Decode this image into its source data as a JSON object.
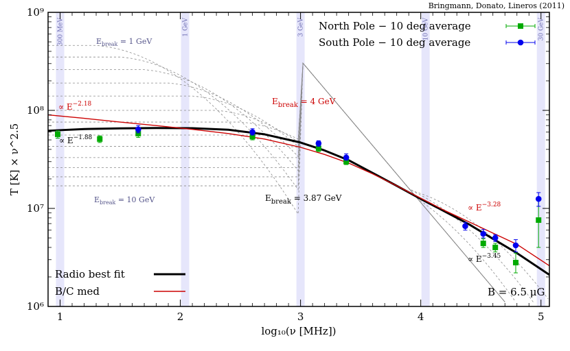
{
  "chart_data": {
    "type": "scatter",
    "credit": "Bringmann, Donato, Lineros (2011)",
    "xlabel": "log₁₀(ν [MHz])",
    "ylabel": "T [K] × ν^2.5",
    "xlim": [
      0.9,
      5.07
    ],
    "ylim": [
      1000000,
      1000000000
    ],
    "yscale": "log",
    "x_ticks": [
      1,
      2,
      3,
      4,
      5
    ],
    "x_tick_labels": [
      "1",
      "2",
      "3",
      "4",
      "5"
    ],
    "y_ticks": [
      1000000,
      10000000,
      100000000,
      1000000000
    ],
    "y_tick_labels": [
      "10⁶",
      "10⁷",
      "10⁸",
      "10⁹"
    ],
    "bands": [
      {
        "x": 1.0,
        "label": "300 MeV"
      },
      {
        "x": 2.04,
        "label": "1 GeV"
      },
      {
        "x": 3.0,
        "label": "3 GeV"
      },
      {
        "x": 4.04,
        "label": "10 GeV"
      },
      {
        "x": 5.0,
        "label": "30 GeV"
      }
    ],
    "series": [
      {
        "name": "North Pole − 10 deg average",
        "color": "#00aa00",
        "marker": "square",
        "points": [
          {
            "x": 0.98,
            "y": 57000000,
            "ylo": 52000000,
            "yhi": 62000000
          },
          {
            "x": 1.33,
            "y": 51000000,
            "ylo": 47000000,
            "yhi": 55000000
          },
          {
            "x": 1.65,
            "y": 58000000,
            "ylo": 53000000,
            "yhi": 63000000
          },
          {
            "x": 2.6,
            "y": 54000000,
            "ylo": 50000000,
            "yhi": 58000000
          },
          {
            "x": 3.15,
            "y": 41000000,
            "ylo": 38000000,
            "yhi": 44000000
          },
          {
            "x": 3.38,
            "y": 30000000,
            "ylo": 28000000,
            "yhi": 32000000
          },
          {
            "x": 4.52,
            "y": 4400000,
            "ylo": 4000000,
            "yhi": 4900000
          },
          {
            "x": 4.62,
            "y": 4000000,
            "ylo": 3600000,
            "yhi": 4400000
          },
          {
            "x": 4.79,
            "y": 2800000,
            "ylo": 2200000,
            "yhi": 3500000
          },
          {
            "x": 4.98,
            "y": 7600000,
            "ylo": 4000000,
            "yhi": 13000000
          }
        ]
      },
      {
        "name": "South Pole − 10 deg average",
        "color": "#0000ee",
        "marker": "circle",
        "points": [
          {
            "x": 1.65,
            "y": 64000000,
            "ylo": 59000000,
            "yhi": 70000000
          },
          {
            "x": 2.6,
            "y": 60000000,
            "ylo": 56000000,
            "yhi": 65000000
          },
          {
            "x": 3.15,
            "y": 46000000,
            "ylo": 43000000,
            "yhi": 49000000
          },
          {
            "x": 3.38,
            "y": 33000000,
            "ylo": 31000000,
            "yhi": 36000000
          },
          {
            "x": 4.37,
            "y": 6600000,
            "ylo": 6000000,
            "yhi": 7200000
          },
          {
            "x": 4.52,
            "y": 5500000,
            "ylo": 5000000,
            "yhi": 6100000
          },
          {
            "x": 4.62,
            "y": 5000000,
            "ylo": 4600000,
            "yhi": 5400000
          },
          {
            "x": 4.79,
            "y": 4200000,
            "ylo": 3600000,
            "yhi": 4800000
          },
          {
            "x": 4.98,
            "y": 12500000,
            "ylo": 10500000,
            "yhi": 14500000
          }
        ]
      }
    ],
    "curves": [
      {
        "name": "Radio best fit",
        "color": "#000000",
        "style": "solid-thick",
        "points": [
          [
            0.9,
            62000000
          ],
          [
            1.2,
            64500000
          ],
          [
            1.5,
            65500000
          ],
          [
            1.8,
            66000000
          ],
          [
            2.1,
            65800000
          ],
          [
            2.4,
            63500000
          ],
          [
            2.7,
            57000000
          ],
          [
            3.0,
            47000000
          ],
          [
            3.2,
            39000000
          ],
          [
            3.4,
            31000000
          ],
          [
            3.6,
            23000000
          ],
          [
            3.8,
            17000000
          ],
          [
            4.0,
            12500000
          ],
          [
            4.2,
            9300000
          ],
          [
            4.4,
            6900000
          ],
          [
            4.6,
            4900000
          ],
          [
            4.8,
            3500000
          ],
          [
            5.07,
            2100000
          ]
        ]
      },
      {
        "name": "B/C med",
        "color": "#cc0000",
        "style": "solid-thin",
        "points": [
          [
            0.9,
            90000000
          ],
          [
            1.2,
            83000000
          ],
          [
            1.5,
            76000000
          ],
          [
            1.8,
            70000000
          ],
          [
            2.1,
            64000000
          ],
          [
            2.4,
            58000000
          ],
          [
            2.7,
            51000000
          ],
          [
            3.0,
            42000000
          ],
          [
            3.2,
            35500000
          ],
          [
            3.4,
            29000000
          ],
          [
            3.6,
            22500000
          ],
          [
            3.8,
            17000000
          ],
          [
            4.0,
            12700000
          ],
          [
            4.2,
            9500000
          ],
          [
            4.4,
            7300000
          ],
          [
            4.6,
            5600000
          ],
          [
            4.8,
            4300000
          ],
          [
            5.07,
            2600000
          ]
        ]
      }
    ],
    "dashed_breaks": [
      {
        "plateau": 460000000,
        "label": "E_break = 1 GeV"
      },
      {
        "plateau": 350000000
      },
      {
        "plateau": 260000000
      },
      {
        "plateau": 190000000
      },
      {
        "plateau": 140000000
      },
      {
        "plateau": 100000000
      },
      {
        "plateau": 76000000
      },
      {
        "plateau": 56000000
      },
      {
        "plateau": 43000000
      },
      {
        "plateau": 33000000
      },
      {
        "plateau": 26000000
      },
      {
        "plateau": 21000000
      },
      {
        "plateau": 17000000,
        "label": "E_break = 10 GeV"
      }
    ],
    "annotations": [
      {
        "text": "∝ E",
        "sup": "−2.18",
        "color": "red"
      },
      {
        "text": "∝ E",
        "sup": "−1.88",
        "color": "black"
      },
      {
        "text": "E",
        "sub": "break",
        "tail": " = 4 GeV",
        "color": "red"
      },
      {
        "text": "E",
        "sub": "break",
        "tail": " = 3.87 GeV",
        "color": "black"
      },
      {
        "text": "∝ E",
        "sup": "−3.28",
        "color": "red"
      },
      {
        "text": "∝ E",
        "sup": "−3.45",
        "color": "black"
      },
      {
        "text": "B = 6.5 μG",
        "color": "black"
      }
    ],
    "legend": {
      "top_right": [
        "North Pole − 10 deg average",
        "South Pole − 10 deg average"
      ],
      "bottom_left": [
        "Radio best fit",
        "B/C med"
      ]
    }
  }
}
